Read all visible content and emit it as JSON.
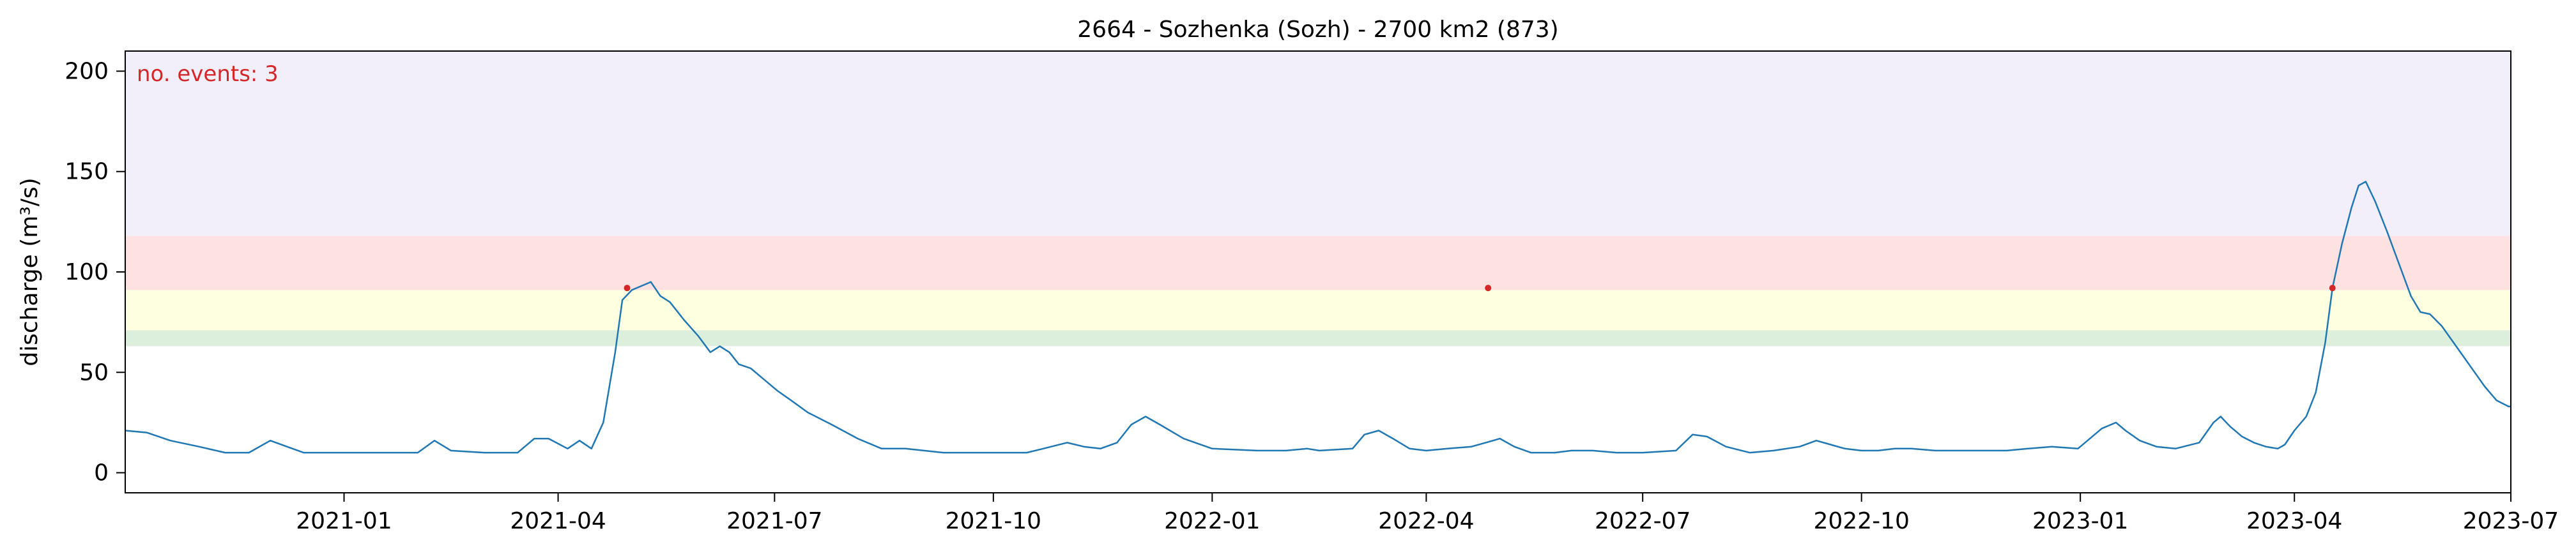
{
  "chart_data": {
    "type": "line",
    "title": "2664 - Sozhenka (Sozh) - 2700 km2 (873)",
    "ylabel": "discharge (m³/s)",
    "xlabel": "",
    "xlim": [
      "2020-10-01",
      "2023-07-01"
    ],
    "ylim": [
      -10,
      210
    ],
    "yticks": [
      0,
      50,
      100,
      150,
      200
    ],
    "xticks": [
      "2021-01-01",
      "2021-04-01",
      "2021-07-01",
      "2021-10-01",
      "2022-01-01",
      "2022-04-01",
      "2022-07-01",
      "2022-10-01",
      "2023-01-01",
      "2023-04-01",
      "2023-07-01"
    ],
    "xtick_labels": [
      "2021-01",
      "2021-04",
      "2021-07",
      "2021-10",
      "2022-01",
      "2022-04",
      "2022-07",
      "2022-10",
      "2023-01",
      "2023-04",
      "2023-07"
    ],
    "annotation": {
      "text": "no. events: 3",
      "color": "#d62728"
    },
    "bands": [
      {
        "from": 63,
        "to": 71,
        "color": "#dcefdc"
      },
      {
        "from": 71,
        "to": 91,
        "color": "#fefee0"
      },
      {
        "from": 91,
        "to": 118,
        "color": "#fee2e2"
      },
      {
        "from": 118,
        "to": 210,
        "color": "#f2eefa"
      }
    ],
    "series": [
      {
        "color": "#1f77b4",
        "points": [
          [
            "2020-10-01",
            21
          ],
          [
            "2020-10-10",
            20
          ],
          [
            "2020-10-20",
            16
          ],
          [
            "2020-11-01",
            13
          ],
          [
            "2020-11-12",
            10
          ],
          [
            "2020-11-22",
            10
          ],
          [
            "2020-12-01",
            16
          ],
          [
            "2020-12-08",
            13
          ],
          [
            "2020-12-15",
            10
          ],
          [
            "2021-01-01",
            10
          ],
          [
            "2021-01-20",
            10
          ],
          [
            "2021-02-01",
            10
          ],
          [
            "2021-02-08",
            16
          ],
          [
            "2021-02-15",
            11
          ],
          [
            "2021-03-01",
            10
          ],
          [
            "2021-03-15",
            10
          ],
          [
            "2021-03-22",
            17
          ],
          [
            "2021-03-28",
            17
          ],
          [
            "2021-04-05",
            12
          ],
          [
            "2021-04-10",
            16
          ],
          [
            "2021-04-15",
            12
          ],
          [
            "2021-04-20",
            25
          ],
          [
            "2021-04-25",
            60
          ],
          [
            "2021-04-28",
            86
          ],
          [
            "2021-05-02",
            91
          ],
          [
            "2021-05-08",
            94
          ],
          [
            "2021-05-10",
            95
          ],
          [
            "2021-05-14",
            88
          ],
          [
            "2021-05-18",
            85
          ],
          [
            "2021-05-24",
            76
          ],
          [
            "2021-05-30",
            68
          ],
          [
            "2021-06-04",
            60
          ],
          [
            "2021-06-08",
            63
          ],
          [
            "2021-06-12",
            60
          ],
          [
            "2021-06-16",
            54
          ],
          [
            "2021-06-21",
            52
          ],
          [
            "2021-06-26",
            47
          ],
          [
            "2021-07-02",
            41
          ],
          [
            "2021-07-08",
            36
          ],
          [
            "2021-07-15",
            30
          ],
          [
            "2021-07-25",
            24
          ],
          [
            "2021-08-05",
            17
          ],
          [
            "2021-08-15",
            12
          ],
          [
            "2021-08-25",
            12
          ],
          [
            "2021-09-10",
            10
          ],
          [
            "2021-10-01",
            10
          ],
          [
            "2021-10-15",
            10
          ],
          [
            "2021-10-22",
            12
          ],
          [
            "2021-11-01",
            15
          ],
          [
            "2021-11-08",
            13
          ],
          [
            "2021-11-15",
            12
          ],
          [
            "2021-11-22",
            15
          ],
          [
            "2021-11-28",
            24
          ],
          [
            "2021-12-04",
            28
          ],
          [
            "2021-12-10",
            24
          ],
          [
            "2021-12-20",
            17
          ],
          [
            "2022-01-01",
            12
          ],
          [
            "2022-01-20",
            11
          ],
          [
            "2022-02-01",
            11
          ],
          [
            "2022-02-10",
            12
          ],
          [
            "2022-02-15",
            11
          ],
          [
            "2022-03-01",
            12
          ],
          [
            "2022-03-06",
            19
          ],
          [
            "2022-03-12",
            21
          ],
          [
            "2022-03-18",
            17
          ],
          [
            "2022-03-25",
            12
          ],
          [
            "2022-04-01",
            11
          ],
          [
            "2022-04-10",
            12
          ],
          [
            "2022-04-20",
            13
          ],
          [
            "2022-04-26",
            15
          ],
          [
            "2022-05-02",
            17
          ],
          [
            "2022-05-08",
            13
          ],
          [
            "2022-05-15",
            10
          ],
          [
            "2022-05-25",
            10
          ],
          [
            "2022-06-01",
            11
          ],
          [
            "2022-06-10",
            11
          ],
          [
            "2022-06-20",
            10
          ],
          [
            "2022-07-01",
            10
          ],
          [
            "2022-07-15",
            11
          ],
          [
            "2022-07-22",
            19
          ],
          [
            "2022-07-28",
            18
          ],
          [
            "2022-08-05",
            13
          ],
          [
            "2022-08-15",
            10
          ],
          [
            "2022-08-25",
            11
          ],
          [
            "2022-09-05",
            13
          ],
          [
            "2022-09-12",
            16
          ],
          [
            "2022-09-18",
            14
          ],
          [
            "2022-09-24",
            12
          ],
          [
            "2022-10-01",
            11
          ],
          [
            "2022-10-08",
            11
          ],
          [
            "2022-10-15",
            12
          ],
          [
            "2022-10-22",
            12
          ],
          [
            "2022-11-01",
            11
          ],
          [
            "2022-11-10",
            11
          ],
          [
            "2022-11-20",
            11
          ],
          [
            "2022-12-01",
            11
          ],
          [
            "2022-12-10",
            12
          ],
          [
            "2022-12-20",
            13
          ],
          [
            "2022-12-31",
            12
          ],
          [
            "2023-01-05",
            17
          ],
          [
            "2023-01-10",
            22
          ],
          [
            "2023-01-16",
            25
          ],
          [
            "2023-01-20",
            21
          ],
          [
            "2023-01-26",
            16
          ],
          [
            "2023-02-02",
            13
          ],
          [
            "2023-02-10",
            12
          ],
          [
            "2023-02-20",
            15
          ],
          [
            "2023-02-26",
            25
          ],
          [
            "2023-03-01",
            28
          ],
          [
            "2023-03-05",
            23
          ],
          [
            "2023-03-10",
            18
          ],
          [
            "2023-03-15",
            15
          ],
          [
            "2023-03-20",
            13
          ],
          [
            "2023-03-25",
            12
          ],
          [
            "2023-03-28",
            14
          ],
          [
            "2023-04-01",
            21
          ],
          [
            "2023-04-06",
            28
          ],
          [
            "2023-04-10",
            40
          ],
          [
            "2023-04-14",
            65
          ],
          [
            "2023-04-17",
            92
          ],
          [
            "2023-04-21",
            114
          ],
          [
            "2023-04-25",
            132
          ],
          [
            "2023-04-28",
            143
          ],
          [
            "2023-05-01",
            145
          ],
          [
            "2023-05-05",
            135
          ],
          [
            "2023-05-10",
            120
          ],
          [
            "2023-05-15",
            104
          ],
          [
            "2023-05-20",
            88
          ],
          [
            "2023-05-24",
            80
          ],
          [
            "2023-05-28",
            79
          ],
          [
            "2023-06-02",
            73
          ],
          [
            "2023-06-08",
            63
          ],
          [
            "2023-06-14",
            53
          ],
          [
            "2023-06-20",
            43
          ],
          [
            "2023-06-25",
            36
          ],
          [
            "2023-06-30",
            33
          ],
          [
            "2023-07-01",
            33
          ]
        ]
      }
    ],
    "events": [
      {
        "x": "2021-04-30",
        "y": 92
      },
      {
        "x": "2022-04-27",
        "y": 92
      },
      {
        "x": "2023-04-17",
        "y": 92
      }
    ]
  }
}
